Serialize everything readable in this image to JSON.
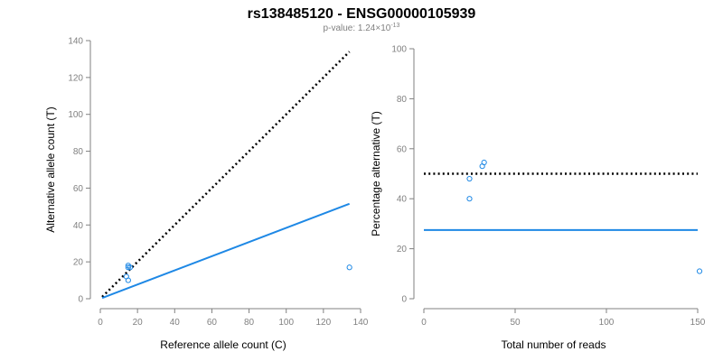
{
  "figure": {
    "title": "rs138485120 - ENSG00000105939",
    "subtitle_prefix": "p-value: 1.24×10",
    "subtitle_exponent": "-13"
  },
  "chart_data": [
    {
      "type": "scatter",
      "xlabel": "Reference allele count (C)",
      "ylabel": "Alternative allele count (T)",
      "xlim": [
        0,
        140
      ],
      "ylim": [
        0,
        140
      ],
      "xticks": [
        0,
        20,
        40,
        60,
        80,
        100,
        120,
        140
      ],
      "yticks": [
        0,
        20,
        40,
        60,
        80,
        100,
        120,
        140
      ],
      "grid": false,
      "points": [
        {
          "x": 14,
          "y": 12
        },
        {
          "x": 15,
          "y": 10
        },
        {
          "x": 15,
          "y": 17
        },
        {
          "x": 15,
          "y": 18
        },
        {
          "x": 16,
          "y": 17
        },
        {
          "x": 134,
          "y": 17
        }
      ],
      "lines": [
        {
          "style": "dotted",
          "color": "#000000",
          "points": [
            [
              1,
              1
            ],
            [
              134,
              134
            ]
          ]
        },
        {
          "style": "solid",
          "color": "#1E88E5",
          "points": [
            [
              1,
              0.4
            ],
            [
              134,
              51.5
            ]
          ]
        }
      ],
      "point_color": "#1E88E5"
    },
    {
      "type": "scatter",
      "xlabel": "Total number of reads",
      "ylabel": "Percentage alternative (T)",
      "xlim": [
        0,
        150
      ],
      "ylim": [
        0,
        100
      ],
      "xticks": [
        0,
        50,
        100,
        150
      ],
      "yticks": [
        0,
        20,
        40,
        60,
        80,
        100
      ],
      "grid": false,
      "points": [
        {
          "x": 25,
          "y": 40
        },
        {
          "x": 25,
          "y": 48
        },
        {
          "x": 32,
          "y": 53
        },
        {
          "x": 33,
          "y": 54.5
        },
        {
          "x": 151,
          "y": 11
        }
      ],
      "lines": [
        {
          "style": "dotted",
          "color": "#000000",
          "points": [
            [
              0,
              50
            ],
            [
              150,
              50
            ]
          ]
        },
        {
          "style": "solid",
          "color": "#1E88E5",
          "points": [
            [
              0,
              27.5
            ],
            [
              150,
              27.5
            ]
          ]
        }
      ],
      "point_color": "#1E88E5"
    }
  ]
}
